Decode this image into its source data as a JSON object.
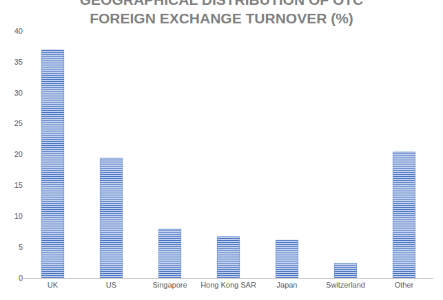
{
  "chart_data": {
    "type": "bar",
    "title": "GEOGRAPHICAL DISTRIBUTION OF OTC FOREIGN EXCHANGE TURNOVER (%)",
    "categories": [
      "UK",
      "US",
      "Singapore",
      "Hong Kong SAR",
      "Japan",
      "Switzerland",
      "Other"
    ],
    "values": [
      36.9,
      19.4,
      7.9,
      6.7,
      6.1,
      2.4,
      20.4
    ],
    "color": "#4472c4",
    "ylim": [
      0,
      40
    ],
    "yticks": [
      0,
      5,
      10,
      15,
      20,
      25,
      30,
      35,
      40
    ],
    "grid": false
  }
}
